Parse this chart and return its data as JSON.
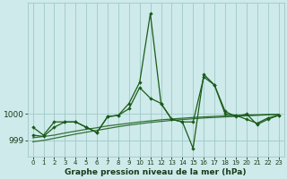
{
  "xlabel": "Graphe pression niveau de la mer (hPa)",
  "background_color": "#ceeaea",
  "grid_color": "#a0c8c8",
  "line_color": "#1a5c1a",
  "x_values": [
    0,
    1,
    2,
    3,
    4,
    5,
    6,
    7,
    8,
    9,
    10,
    11,
    12,
    13,
    14,
    15,
    16,
    17,
    18,
    19,
    20,
    21,
    22,
    23
  ],
  "series1": [
    999.5,
    999.2,
    999.7,
    999.7,
    999.7,
    999.5,
    999.3,
    999.9,
    999.95,
    1000.4,
    1001.2,
    1003.8,
    1000.4,
    999.8,
    999.7,
    998.7,
    1001.5,
    1001.1,
    1000.1,
    999.9,
    1000.0,
    999.6,
    999.8,
    999.95
  ],
  "series2": [
    999.2,
    999.15,
    999.5,
    999.7,
    999.7,
    999.5,
    999.3,
    999.9,
    999.95,
    1000.2,
    1001.0,
    1000.6,
    1000.4,
    999.8,
    999.7,
    999.7,
    1001.4,
    1001.1,
    1000.0,
    999.95,
    999.8,
    999.65,
    999.85,
    999.95
  ],
  "trend1": [
    999.1,
    999.15,
    999.2,
    999.28,
    999.35,
    999.42,
    999.48,
    999.55,
    999.6,
    999.65,
    999.7,
    999.74,
    999.78,
    999.81,
    999.84,
    999.87,
    999.89,
    999.91,
    999.93,
    999.95,
    999.96,
    999.97,
    999.98,
    999.99
  ],
  "trend2": [
    998.95,
    999.0,
    999.08,
    999.16,
    999.24,
    999.31,
    999.38,
    999.45,
    999.52,
    999.58,
    999.63,
    999.68,
    999.72,
    999.76,
    999.79,
    999.82,
    999.85,
    999.87,
    999.89,
    999.91,
    999.93,
    999.95,
    999.97,
    999.98
  ],
  "ylim": [
    998.4,
    1004.2
  ],
  "yticks": [
    999,
    1000
  ],
  "ytick_labels": [
    "999",
    "1000"
  ],
  "xticks": [
    0,
    1,
    2,
    3,
    4,
    5,
    6,
    7,
    8,
    9,
    10,
    11,
    12,
    13,
    14,
    15,
    16,
    17,
    18,
    19,
    20,
    21,
    22,
    23
  ]
}
